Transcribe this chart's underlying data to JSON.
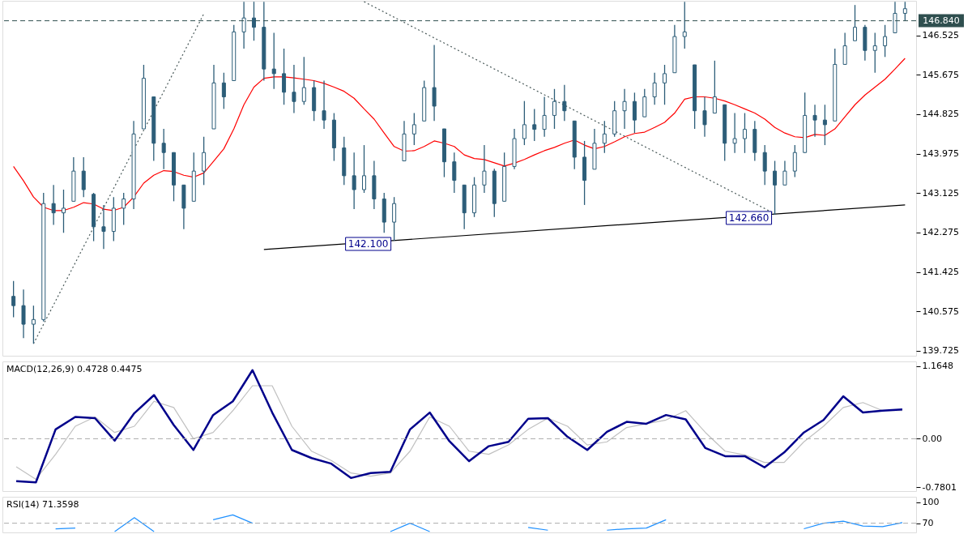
{
  "chart_data": [
    {
      "type": "candlestick",
      "color": "#2c5d78",
      "categories": [
        null,
        null,
        null,
        null,
        null,
        null,
        null,
        null,
        null,
        null,
        null,
        null,
        null,
        null,
        null,
        null,
        null,
        null,
        null,
        null,
        null,
        null,
        null,
        null,
        null,
        null,
        null,
        null,
        null,
        null,
        null,
        null,
        null,
        null,
        null,
        null,
        null,
        null,
        null,
        null,
        null,
        null,
        null,
        null,
        null,
        null,
        null,
        null,
        null,
        null,
        null,
        null,
        null,
        null,
        null,
        null,
        null,
        null,
        null,
        null,
        null,
        null,
        null,
        null,
        null,
        null,
        null,
        null,
        null,
        null,
        null,
        null,
        null,
        null,
        null,
        null,
        null,
        null,
        null,
        null,
        null,
        null,
        null,
        null,
        null,
        null,
        null,
        null,
        null,
        null
      ],
      "ohlc": [
        [
          140.9,
          141.23,
          140.45,
          140.7
        ],
        [
          140.7,
          141.05,
          140.0,
          140.3
        ],
        [
          140.3,
          140.7,
          139.88,
          140.4
        ],
        [
          140.4,
          143.13,
          140.36,
          142.9
        ],
        [
          142.9,
          143.3,
          142.44,
          142.7
        ],
        [
          142.7,
          143.2,
          142.27,
          142.8
        ],
        [
          142.95,
          143.9,
          142.95,
          143.6
        ],
        [
          143.6,
          143.9,
          143.04,
          143.2
        ],
        [
          143.1,
          143.13,
          142.09,
          142.4
        ],
        [
          142.4,
          142.87,
          141.92,
          142.3
        ],
        [
          142.3,
          143.04,
          142.09,
          142.8
        ],
        [
          142.8,
          143.13,
          142.44,
          143.0
        ],
        [
          143.0,
          144.68,
          142.78,
          144.4
        ],
        [
          144.51,
          145.89,
          144.51,
          145.6
        ],
        [
          145.2,
          145.2,
          143.82,
          144.2
        ],
        [
          144.2,
          144.51,
          143.64,
          144.0
        ],
        [
          144.0,
          144.0,
          142.95,
          143.3
        ],
        [
          143.3,
          143.3,
          142.35,
          142.8
        ],
        [
          142.95,
          144.0,
          142.95,
          143.6
        ],
        [
          143.6,
          144.34,
          143.3,
          144.0
        ],
        [
          144.51,
          145.89,
          144.51,
          145.5
        ],
        [
          145.5,
          145.72,
          144.94,
          145.2
        ],
        [
          145.55,
          146.75,
          145.55,
          146.6
        ],
        [
          146.6,
          147.25,
          146.24,
          146.9
        ],
        [
          146.9,
          147.25,
          146.41,
          146.7
        ],
        [
          146.7,
          147.25,
          145.55,
          145.8
        ],
        [
          145.8,
          146.58,
          145.37,
          145.7
        ],
        [
          145.7,
          146.24,
          145.03,
          145.3
        ],
        [
          145.3,
          145.89,
          144.85,
          145.1
        ],
        [
          145.1,
          146.06,
          145.03,
          145.4
        ],
        [
          145.4,
          145.55,
          144.68,
          144.9
        ],
        [
          144.9,
          145.55,
          144.51,
          144.7
        ],
        [
          144.7,
          144.85,
          143.82,
          144.1
        ],
        [
          144.1,
          144.34,
          143.3,
          143.5
        ],
        [
          143.5,
          144.0,
          142.78,
          143.2
        ],
        [
          143.2,
          144.16,
          143.13,
          143.5
        ],
        [
          143.5,
          143.82,
          142.78,
          143.0
        ],
        [
          143.0,
          143.13,
          142.27,
          142.5
        ],
        [
          142.5,
          143.04,
          142.1,
          142.9
        ],
        [
          143.82,
          144.68,
          143.82,
          144.4
        ],
        [
          144.4,
          144.85,
          144.16,
          144.6
        ],
        [
          144.68,
          145.55,
          144.68,
          145.4
        ],
        [
          145.4,
          146.32,
          144.68,
          145.0
        ],
        [
          144.51,
          144.51,
          143.47,
          143.8
        ],
        [
          143.8,
          144.0,
          143.13,
          143.4
        ],
        [
          143.3,
          143.3,
          142.35,
          142.7
        ],
        [
          142.7,
          143.47,
          142.61,
          143.3
        ],
        [
          143.3,
          144.16,
          143.13,
          143.6
        ],
        [
          143.6,
          143.65,
          142.61,
          142.9
        ],
        [
          142.95,
          144.0,
          142.95,
          143.7
        ],
        [
          143.7,
          144.51,
          143.64,
          144.3
        ],
        [
          144.3,
          145.11,
          144.16,
          144.6
        ],
        [
          144.6,
          144.94,
          144.25,
          144.5
        ],
        [
          144.5,
          145.2,
          144.34,
          144.8
        ],
        [
          144.8,
          145.37,
          144.51,
          145.1
        ],
        [
          145.1,
          145.46,
          144.68,
          144.9
        ],
        [
          144.68,
          144.68,
          143.64,
          143.9
        ],
        [
          143.9,
          144.25,
          142.87,
          143.4
        ],
        [
          143.64,
          144.51,
          143.64,
          144.2
        ],
        [
          144.2,
          144.68,
          143.99,
          144.4
        ],
        [
          144.4,
          145.11,
          144.34,
          144.9
        ],
        [
          144.9,
          145.37,
          144.51,
          145.1
        ],
        [
          145.1,
          145.29,
          144.42,
          144.7
        ],
        [
          144.77,
          145.37,
          144.77,
          145.2
        ],
        [
          145.2,
          145.72,
          145.03,
          145.5
        ],
        [
          145.5,
          145.89,
          145.03,
          145.7
        ],
        [
          145.72,
          146.75,
          145.72,
          146.5
        ],
        [
          146.5,
          147.25,
          146.24,
          146.6
        ],
        [
          145.89,
          145.89,
          144.51,
          144.9
        ],
        [
          144.9,
          145.2,
          144.34,
          144.6
        ],
        [
          144.85,
          145.98,
          144.85,
          145.2
        ],
        [
          145.03,
          145.03,
          143.82,
          144.2
        ],
        [
          144.2,
          144.85,
          143.99,
          144.3
        ],
        [
          144.3,
          144.85,
          143.99,
          144.5
        ],
        [
          144.5,
          144.68,
          143.82,
          144.0
        ],
        [
          144.0,
          144.16,
          143.3,
          143.6
        ],
        [
          143.6,
          143.82,
          142.66,
          143.3
        ],
        [
          143.3,
          143.82,
          143.3,
          143.6
        ],
        [
          143.6,
          144.16,
          143.47,
          144.0
        ],
        [
          144.0,
          145.29,
          143.99,
          144.8
        ],
        [
          144.8,
          145.03,
          144.34,
          144.7
        ],
        [
          144.7,
          145.03,
          144.16,
          144.6
        ],
        [
          144.68,
          146.24,
          144.68,
          145.9
        ],
        [
          145.9,
          146.58,
          145.89,
          146.3
        ],
        [
          146.41,
          147.18,
          146.41,
          146.7
        ],
        [
          146.7,
          146.75,
          145.98,
          146.2
        ],
        [
          146.2,
          146.58,
          145.72,
          146.3
        ],
        [
          146.3,
          146.75,
          146.06,
          146.5
        ],
        [
          146.58,
          147.25,
          146.58,
          147.0
        ],
        [
          147.0,
          147.25,
          146.84,
          147.1
        ]
      ],
      "series": [
        {
          "type": "line",
          "color": "#ff0000",
          "values": [
            143.7,
            143.39,
            143.04,
            142.82,
            142.75,
            142.75,
            142.82,
            142.92,
            142.89,
            142.78,
            142.75,
            142.82,
            143.04,
            143.34,
            143.51,
            143.61,
            143.59,
            143.51,
            143.47,
            143.56,
            143.82,
            144.08,
            144.51,
            145.03,
            145.41,
            145.6,
            145.63,
            145.63,
            145.61,
            145.58,
            145.55,
            145.49,
            145.41,
            145.32,
            145.17,
            144.94,
            144.72,
            144.42,
            144.13,
            144.03,
            144.04,
            144.13,
            144.25,
            144.2,
            144.13,
            143.95,
            143.87,
            143.85,
            143.78,
            143.71,
            143.77,
            143.85,
            143.95,
            144.04,
            144.11,
            144.2,
            144.27,
            144.16,
            144.08,
            144.13,
            144.23,
            144.34,
            144.41,
            144.44,
            144.54,
            144.65,
            144.85,
            145.15,
            145.2,
            145.2,
            145.17,
            145.11,
            145.03,
            144.94,
            144.85,
            144.72,
            144.54,
            144.42,
            144.34,
            144.32,
            144.39,
            144.37,
            144.51,
            144.77,
            145.03,
            145.24,
            145.41,
            145.58,
            145.8,
            146.03
          ]
        },
        {
          "type": "line",
          "color": "#4a5a5a",
          "line_style": "dotted",
          "values": [
            null,
            null,
            139.88,
            null,
            null,
            null,
            null,
            null,
            null,
            null,
            null,
            null,
            null,
            null,
            null,
            null,
            null,
            null,
            null,
            146.99,
            null,
            null,
            null,
            null,
            null,
            null,
            null,
            null,
            null,
            null,
            null,
            null,
            null,
            null,
            null,
            null,
            null,
            null,
            null,
            null,
            null,
            null,
            null,
            null,
            null,
            null,
            null,
            null,
            null,
            null,
            null,
            null,
            null,
            null,
            null,
            null,
            null,
            null,
            null,
            null,
            null,
            null,
            null,
            null,
            null,
            null,
            null,
            null,
            null,
            null,
            null,
            null,
            null,
            null,
            null,
            null,
            null,
            null,
            null,
            null,
            null,
            null,
            null,
            null,
            null,
            null,
            null,
            null,
            null,
            null
          ]
        },
        {
          "type": "line",
          "color": "#4a5a5a",
          "line_style": "dotted",
          "values": [
            null,
            null,
            null,
            null,
            null,
            null,
            null,
            null,
            null,
            null,
            null,
            null,
            null,
            null,
            null,
            null,
            null,
            null,
            null,
            null,
            null,
            null,
            null,
            null,
            null,
            null,
            null,
            null,
            null,
            null,
            null,
            null,
            null,
            null,
            null,
            147.25,
            null,
            null,
            null,
            null,
            null,
            null,
            null,
            null,
            null,
            null,
            null,
            null,
            null,
            null,
            null,
            null,
            null,
            null,
            null,
            null,
            null,
            null,
            null,
            null,
            null,
            null,
            null,
            null,
            null,
            null,
            null,
            null,
            null,
            null,
            null,
            null,
            null,
            null,
            null,
            null,
            142.68,
            null,
            null,
            null,
            null,
            null,
            null,
            null,
            null,
            null,
            null,
            null,
            null,
            null
          ]
        },
        {
          "type": "line",
          "color": "#000000",
          "line_style": "solid",
          "values": [
            null,
            null,
            null,
            null,
            null,
            null,
            null,
            null,
            null,
            null,
            null,
            null,
            null,
            null,
            null,
            null,
            null,
            null,
            null,
            null,
            null,
            null,
            null,
            null,
            null,
            141.91,
            null,
            null,
            null,
            null,
            null,
            null,
            null,
            null,
            null,
            null,
            null,
            null,
            null,
            null,
            null,
            null,
            null,
            null,
            null,
            null,
            null,
            null,
            null,
            null,
            null,
            null,
            null,
            null,
            null,
            null,
            null,
            null,
            null,
            null,
            null,
            null,
            null,
            null,
            null,
            null,
            null,
            null,
            null,
            null,
            null,
            null,
            null,
            null,
            null,
            null,
            null,
            null,
            null,
            null,
            null,
            null,
            null,
            null,
            null,
            null,
            null,
            null,
            null,
            142.87
          ]
        }
      ],
      "ref_lines": [
        {
          "axis": "y",
          "value": 146.84,
          "label": "146.840",
          "color": "#2f4f4f",
          "line_style": "dashed"
        }
      ],
      "annotations": [
        {
          "text": "142.100",
          "y": 142.1
        },
        {
          "text": "142.660",
          "y": 142.66
        }
      ],
      "ylim": [
        139.62,
        147.27
      ],
      "yticks": [
        139.725,
        140.575,
        141.425,
        142.275,
        143.125,
        143.975,
        144.825,
        145.675,
        146.525
      ],
      "tick_labels": "y"
    },
    {
      "type": "line",
      "title": "MACD(12,26,9) 0.4728 0.4475",
      "categories": [
        null,
        null,
        null,
        null,
        null,
        null,
        null,
        null,
        null,
        null,
        null,
        null,
        null,
        null,
        null,
        null,
        null,
        null,
        null,
        null,
        null,
        null,
        null,
        null,
        null,
        null,
        null,
        null,
        null,
        null,
        null,
        null,
        null,
        null,
        null,
        null,
        null,
        null,
        null,
        null,
        null,
        null,
        null,
        null,
        null,
        null
      ],
      "series": [
        {
          "color": "#c0c0c0",
          "values": [
            -0.45,
            -0.65,
            -0.25,
            0.2,
            0.35,
            0.1,
            0.2,
            0.6,
            0.5,
            0.0,
            0.1,
            0.45,
            0.85,
            0.85,
            0.2,
            -0.2,
            -0.35,
            -0.55,
            -0.6,
            -0.55,
            -0.2,
            0.35,
            0.2,
            -0.2,
            -0.25,
            -0.1,
            0.15,
            0.33,
            0.2,
            -0.1,
            -0.05,
            0.18,
            0.24,
            0.3,
            0.45,
            0.1,
            -0.2,
            -0.26,
            -0.38,
            -0.38,
            -0.05,
            0.2,
            0.5,
            0.58,
            0.45,
            0.45
          ]
        },
        {
          "color": "#00008b",
          "values": [
            -0.68,
            -0.7,
            0.15,
            0.35,
            0.33,
            -0.03,
            0.41,
            0.7,
            0.22,
            -0.18,
            0.38,
            0.6,
            1.1,
            0.42,
            -0.18,
            -0.31,
            -0.4,
            -0.63,
            -0.55,
            -0.53,
            0.15,
            0.42,
            -0.04,
            -0.36,
            -0.12,
            -0.05,
            0.32,
            0.33,
            0.03,
            -0.18,
            0.11,
            0.27,
            0.24,
            0.38,
            0.31,
            -0.15,
            -0.28,
            -0.28,
            -0.46,
            -0.22,
            0.1,
            0.3,
            0.68,
            0.42,
            0.45,
            0.47
          ]
        }
      ],
      "ref_lines": [
        {
          "axis": "y",
          "value": 0,
          "color": "#aaaaaa",
          "line_style": "dashed"
        }
      ],
      "ylim": [
        -0.84,
        1.24
      ],
      "yticks": [
        -0.7801,
        {
          "value": 0,
          "label": "0.00"
        },
        1.1648
      ],
      "tick_labels": "y"
    },
    {
      "type": "line",
      "title": "RSI(14) 71.3598",
      "categories": [
        null,
        null,
        null,
        null,
        null,
        null,
        null,
        null,
        null,
        null,
        null,
        null,
        null,
        null,
        null,
        null,
        null,
        null,
        null,
        null,
        null,
        null,
        null,
        null,
        null,
        null,
        null,
        null,
        null,
        null,
        null,
        null,
        null,
        null,
        null,
        null,
        null,
        null,
        null,
        null,
        null,
        null,
        null,
        null,
        null,
        null
      ],
      "series": [
        {
          "color": "#1e90ff",
          "values": [
            null,
            null,
            62,
            63,
            null,
            58,
            78,
            58,
            null,
            null,
            75,
            82,
            70,
            null,
            null,
            null,
            null,
            null,
            null,
            58,
            70,
            58,
            null,
            null,
            null,
            null,
            64,
            60,
            null,
            null,
            60,
            62,
            63,
            75,
            null,
            null,
            null,
            null,
            null,
            null,
            62,
            70,
            73,
            66,
            65,
            71
          ]
        }
      ],
      "ref_lines": [
        {
          "axis": "y",
          "value": 70,
          "color": "#aaaaaa",
          "line_style": "dashed"
        }
      ],
      "ylim": [
        56.8,
        108
      ],
      "yticks": [
        70,
        100
      ],
      "tick_labels": "y"
    }
  ]
}
